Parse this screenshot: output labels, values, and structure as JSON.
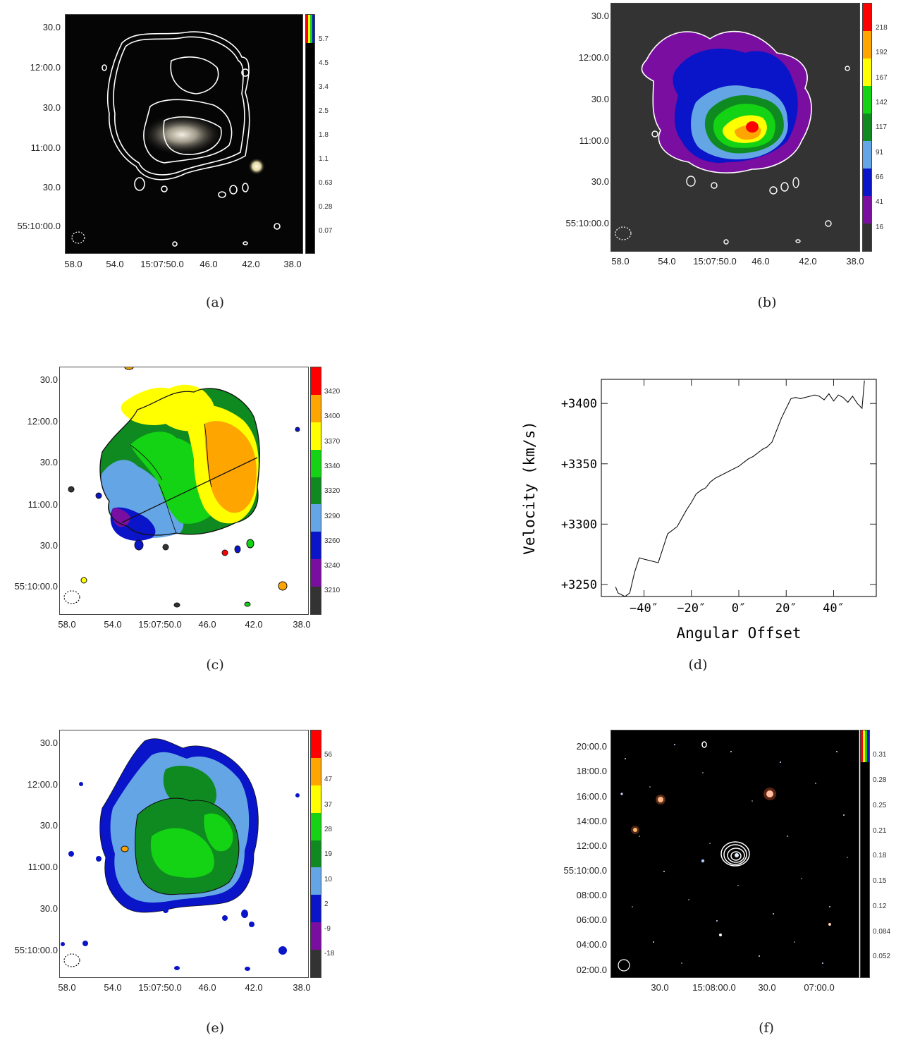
{
  "captions": [
    "(a)",
    "(b)",
    "(c)",
    "(d)",
    "(e)",
    "(f)"
  ],
  "dec_ticks_main": [
    "30.0",
    "12:00.0",
    "30.0",
    "11:00.0",
    "30.0",
    "55:10:00.0"
  ],
  "ra_ticks_main": [
    "58.0",
    "54.0",
    "15:07:50.0",
    "46.0",
    "42.0",
    "38.0"
  ],
  "panel_a": {
    "colorbar": [
      "5.7",
      "4.5",
      "3.4",
      "2.5",
      "1.8",
      "1.1",
      "0.63",
      "0.28",
      "0.07"
    ]
  },
  "panel_b": {
    "colorbar": [
      "218",
      "192",
      "167",
      "142",
      "117",
      "91",
      "66",
      "41",
      "16"
    ]
  },
  "panel_c": {
    "colorbar": [
      "3420",
      "3400",
      "3370",
      "3340",
      "3320",
      "3290",
      "3260",
      "3240",
      "3210"
    ]
  },
  "panel_e": {
    "colorbar": [
      "56",
      "47",
      "37",
      "28",
      "19",
      "10",
      "2",
      "-9",
      "-18"
    ]
  },
  "panel_f": {
    "colorbar": [
      "0.31",
      "0.28",
      "0.25",
      "0.21",
      "0.18",
      "0.15",
      "0.12",
      "0.084",
      "0.052"
    ],
    "dec_ticks": [
      "20:00.0",
      "18:00.0",
      "16:00.0",
      "14:00.0",
      "12:00.0",
      "55:10:00.0",
      "08:00.0",
      "06:00.0",
      "04:00.0",
      "02:00.0"
    ],
    "ra_ticks": [
      "30.0",
      "15:08:00.0",
      "30.0",
      "07:00.0"
    ]
  },
  "colors": {
    "bins": [
      "#333333",
      "#7a0ea0",
      "#0a14c8",
      "#64a5e6",
      "#0f8a20",
      "#14d214",
      "#ffff00",
      "#ffa500",
      "#ff0000"
    ],
    "sky": "#000000",
    "panel_b_bg": "#333333"
  },
  "chart_data": {
    "type": "line",
    "xlabel": "Angular Offset",
    "ylabel": "Velocity (km/s)",
    "xticks": [
      "−40″",
      "−20″",
      "0″",
      "20″",
      "40″"
    ],
    "xtick_values": [
      -40,
      -20,
      0,
      20,
      40
    ],
    "yticks": [
      "+3250",
      "+3300",
      "+3350",
      "+3400"
    ],
    "ytick_values": [
      3250,
      3300,
      3350,
      3400
    ],
    "xlim": [
      -58,
      58
    ],
    "ylim": [
      3240,
      3420
    ],
    "series": [
      {
        "x": [
          -52,
          -51,
          -50,
          -48,
          -46,
          -44,
          -42,
          -40,
          -38,
          -36,
          -34,
          -32,
          -30,
          -28,
          -26,
          -24,
          -22,
          -20,
          -18,
          -16,
          -14,
          -12,
          -10,
          -8,
          -6,
          -4,
          -2,
          0,
          2,
          4,
          6,
          8,
          10,
          12,
          14,
          16,
          18,
          20,
          22,
          24,
          26,
          28,
          30,
          32,
          34,
          36,
          38,
          40,
          42,
          44,
          46,
          48,
          50,
          52,
          53
        ],
        "y": [
          3248,
          3243,
          3242,
          3240,
          3243,
          3260,
          3272,
          3271,
          3270,
          3269,
          3268,
          3280,
          3292,
          3295,
          3298,
          3305,
          3312,
          3318,
          3325,
          3328,
          3330,
          3335,
          3338,
          3340,
          3342,
          3344,
          3346,
          3348,
          3351,
          3354,
          3356,
          3359,
          3362,
          3364,
          3368,
          3378,
          3388,
          3396,
          3404,
          3405,
          3404,
          3405,
          3406,
          3407,
          3406,
          3403,
          3408,
          3402,
          3407,
          3405,
          3401,
          3406,
          3400,
          3396,
          3419
        ]
      }
    ]
  }
}
